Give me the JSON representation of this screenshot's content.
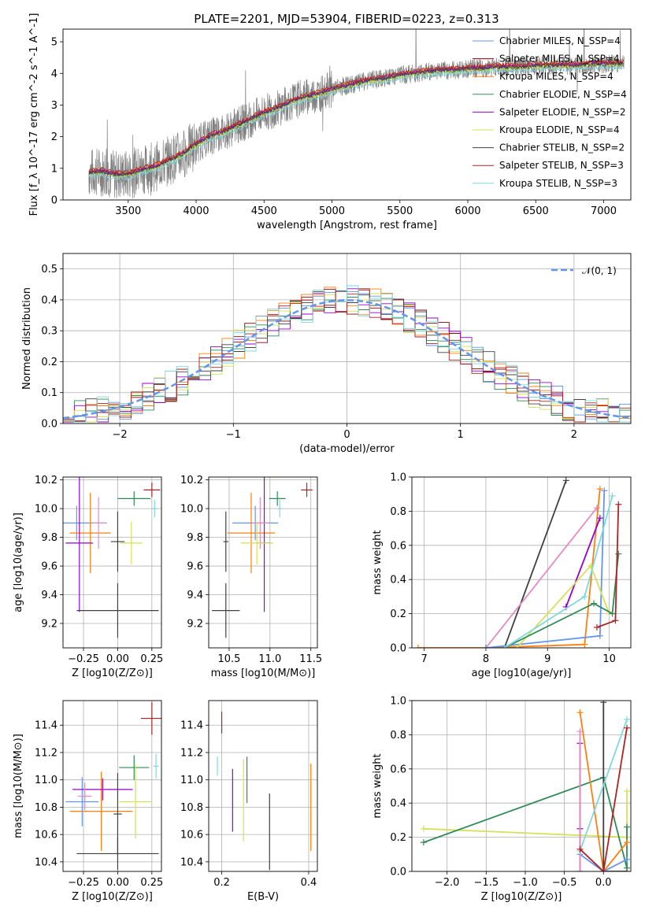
{
  "chart_data": [
    {
      "type": "line",
      "title": "PLATE=2201, MJD=53904, FIBERID=0223, z=0.313",
      "xlabel": "wavelength [Angstrom, rest frame]",
      "ylabel": "Flux [f_λ 10^-17 erg cm^-2 s^-1 A^-1]",
      "xlim": [
        3020,
        7200
      ],
      "ylim": [
        0,
        5.4
      ],
      "xticks": [
        "3500",
        "4000",
        "4500",
        "5000",
        "5500",
        "6000",
        "6500",
        "7000"
      ],
      "yticks": [
        "0",
        "1",
        "2",
        "3",
        "4",
        "5"
      ],
      "grid": false,
      "legend_position": "right",
      "data_color": "#808080",
      "model_x": [
        3210,
        3300,
        3400,
        3500,
        3600,
        3700,
        3800,
        3900,
        4000,
        4100,
        4200,
        4300,
        4400,
        4500,
        4600,
        4700,
        4800,
        4900,
        5000,
        5100,
        5200,
        5300,
        5400,
        5500,
        5600,
        5700,
        5800,
        5900,
        6000,
        6100,
        6200,
        6300,
        6400,
        6500,
        6600,
        6700,
        6800,
        6900,
        7000
      ],
      "model_y": [
        0.85,
        0.9,
        0.8,
        0.8,
        0.95,
        1.05,
        1.25,
        1.45,
        1.75,
        2.0,
        2.15,
        2.35,
        2.55,
        2.75,
        2.9,
        3.1,
        3.25,
        3.35,
        3.5,
        3.6,
        3.7,
        3.8,
        3.85,
        3.95,
        4.0,
        4.05,
        4.1,
        4.1,
        4.15,
        4.15,
        4.2,
        4.2,
        4.2,
        4.25,
        4.25,
        4.25,
        4.25,
        4.3,
        4.3
      ],
      "series": [
        {
          "name": "Chabrier MILES, N_SSP=4",
          "color": "#6495ed",
          "offset": 0.02
        },
        {
          "name": "Salpeter MILES, N_SSP=4",
          "color": "#8b0000",
          "offset": 0.0
        },
        {
          "name": "Kroupa MILES, N_SSP=4",
          "color": "#ff7f0e",
          "offset": 0.05
        },
        {
          "name": "Chabrier ELODIE, N_SSP=4",
          "color": "#2e8b57",
          "offset": -0.02
        },
        {
          "name": "Salpeter ELODIE, N_SSP=2",
          "color": "#9400d3",
          "offset": 0.03
        },
        {
          "name": "Kroupa ELODIE, N_SSP=4",
          "color": "#d4e157",
          "offset": -0.05
        },
        {
          "name": "Chabrier STELIB, N_SSP=2",
          "color": "#404040",
          "offset": 0.01
        },
        {
          "name": "Salpeter STELIB, N_SSP=3",
          "color": "#b22222",
          "offset": 0.08
        },
        {
          "name": "Kroupa STELIB, N_SSP=3",
          "color": "#7fd8e0",
          "offset": -0.12
        }
      ]
    },
    {
      "type": "line",
      "xlabel": "(data-model)/error",
      "ylabel": "Normed distribution",
      "xlim": [
        -2.5,
        2.5
      ],
      "ylim": [
        0,
        0.55
      ],
      "xticks": [
        "−2",
        "−1",
        "0",
        "1",
        "2"
      ],
      "yticks": [
        "0.0",
        "0.1",
        "0.2",
        "0.3",
        "0.4",
        "0.5"
      ],
      "grid": true,
      "legend_position": "top-right",
      "reference_curve": {
        "name": "𝒩(0, 1)",
        "color": "#6495ed",
        "style": "dashed"
      },
      "bin_width": 0.1
    },
    {
      "type": "scatter",
      "xlabel": "Z [log10(Z/Z⊙)]",
      "ylabel": "age [log10(age/yr)]",
      "xlim": [
        -0.4,
        0.32
      ],
      "ylim": [
        9.03,
        10.22
      ],
      "xticks": [
        "−0.25",
        "0.00",
        "0.25"
      ],
      "yticks": [
        "9.2",
        "9.4",
        "9.6",
        "9.8",
        "10.0",
        "10.2"
      ],
      "points": [
        {
          "color": "#6495ed",
          "x": -0.3,
          "xerr": 0.22,
          "y": 9.9,
          "yerr": 0.12
        },
        {
          "color": "#ff7f0e",
          "x": -0.2,
          "xerr": 0.15,
          "y": 9.83,
          "yerr": 0.28
        },
        {
          "color": "#9400d3",
          "x": -0.28,
          "xerr": 0.1,
          "y": 9.76,
          "yerr": 0.48
        },
        {
          "color": "#e78ac3",
          "x": -0.14,
          "xerr": 0.05,
          "y": 9.9,
          "yerr": 0.18
        },
        {
          "color": "#2e8b57",
          "x": 0.12,
          "xerr": 0.12,
          "y": 10.07,
          "yerr": 0.05
        },
        {
          "color": "#d4e157",
          "x": 0.1,
          "xerr": 0.08,
          "y": 9.76,
          "yerr": 0.15
        },
        {
          "color": "#404040",
          "x": 0.0,
          "xerr": 0.3,
          "y": 9.29,
          "yerr": 0.19
        },
        {
          "color": "#404040",
          "x": 0.0,
          "xerr": 0.05,
          "y": 9.77,
          "yerr": 0.21
        },
        {
          "color": "#b22222",
          "x": 0.25,
          "xerr": 0.06,
          "y": 10.13,
          "yerr": 0.05
        },
        {
          "color": "#7fd8e0",
          "x": 0.27,
          "xerr": 0.02,
          "y": 10.0,
          "yerr": 0.06
        }
      ]
    },
    {
      "type": "scatter",
      "xlabel": "mass [log10(M/M⊙)]",
      "ylabel": "",
      "xlim": [
        10.25,
        11.58
      ],
      "ylim": [
        9.03,
        10.22
      ],
      "xticks": [
        "10.5",
        "11.0",
        "11.5"
      ],
      "yticks": [
        "9.2",
        "9.4",
        "9.6",
        "9.8",
        "10.0",
        "10.2"
      ],
      "points": [
        {
          "color": "#6495ed",
          "x": 10.82,
          "xerr": 0.28,
          "y": 9.9,
          "yerr": 0.12
        },
        {
          "color": "#ff7f0e",
          "x": 10.77,
          "xerr": 0.29,
          "y": 9.83,
          "yerr": 0.28
        },
        {
          "color": "#9400d3",
          "x": 10.93,
          "xerr": 0.08,
          "y": 9.76,
          "yerr": 0.48
        },
        {
          "color": "#e78ac3",
          "x": 10.88,
          "xerr": 0.1,
          "y": 9.9,
          "yerr": 0.18
        },
        {
          "color": "#2e8b57",
          "x": 11.09,
          "xerr": 0.1,
          "y": 10.07,
          "yerr": 0.05
        },
        {
          "color": "#d4e157",
          "x": 10.84,
          "xerr": 0.2,
          "y": 9.76,
          "yerr": 0.15
        },
        {
          "color": "#404040",
          "x": 10.46,
          "xerr": 0.17,
          "y": 9.29,
          "yerr": 0.19
        },
        {
          "color": "#404040",
          "x": 10.46,
          "xerr": 0.03,
          "y": 9.77,
          "yerr": 0.21
        },
        {
          "color": "#b22222",
          "x": 11.45,
          "xerr": 0.07,
          "y": 10.13,
          "yerr": 0.05
        },
        {
          "color": "#7fd8e0",
          "x": 11.12,
          "xerr": 0.03,
          "y": 10.0,
          "yerr": 0.06
        }
      ]
    },
    {
      "type": "line",
      "xlabel": "age [log10(age/yr)]",
      "ylabel": "mass weight",
      "xlim": [
        6.8,
        10.35
      ],
      "ylim": [
        0,
        1.0
      ],
      "xticks": [
        "7",
        "8",
        "9",
        "10"
      ],
      "yticks": [
        "0.0",
        "0.2",
        "0.4",
        "0.6",
        "0.8",
        "1.0"
      ],
      "grid": true,
      "series": [
        {
          "color": "#404040",
          "points": [
            [
              8.0,
              0.0
            ],
            [
              8.3,
              0.0
            ],
            [
              9.3,
              0.98
            ]
          ]
        },
        {
          "color": "#e78ac3",
          "points": [
            [
              8.0,
              0.0
            ],
            [
              9.8,
              0.82
            ]
          ]
        },
        {
          "color": "#ff7f0e",
          "points": [
            [
              6.9,
              0.0
            ],
            [
              8.0,
              0.0
            ],
            [
              9.6,
              0.02
            ],
            [
              9.85,
              0.93
            ]
          ]
        },
        {
          "color": "#6495ed",
          "points": [
            [
              8.0,
              0.0
            ],
            [
              9.85,
              0.07
            ],
            [
              9.92,
              0.92
            ]
          ]
        },
        {
          "color": "#9400d3",
          "points": [
            [
              9.3,
              0.24
            ],
            [
              9.85,
              0.76
            ]
          ]
        },
        {
          "color": "#d4e157",
          "points": [
            [
              8.5,
              0.0
            ],
            [
              9.7,
              0.48
            ],
            [
              10.0,
              0.2
            ]
          ]
        },
        {
          "color": "#2e8b57",
          "points": [
            [
              8.3,
              0.0
            ],
            [
              9.75,
              0.26
            ],
            [
              10.05,
              0.2
            ],
            [
              10.15,
              0.55
            ]
          ]
        },
        {
          "color": "#7fd8e0",
          "points": [
            [
              8.3,
              0.0
            ],
            [
              9.6,
              0.3
            ],
            [
              10.05,
              0.89
            ]
          ]
        },
        {
          "color": "#b22222",
          "points": [
            [
              9.8,
              0.12
            ],
            [
              10.1,
              0.16
            ],
            [
              10.15,
              0.84
            ]
          ]
        }
      ]
    },
    {
      "type": "scatter",
      "xlabel": "Z [log10(Z/Z⊙)]",
      "ylabel": "mass [log10(M/M⊙)]",
      "xlim": [
        -0.4,
        0.32
      ],
      "ylim": [
        10.33,
        11.58
      ],
      "xticks": [
        "−0.25",
        "0.00",
        "0.25"
      ],
      "yticks": [
        "10.4",
        "10.6",
        "10.8",
        "11.0",
        "11.2",
        "11.4"
      ],
      "points": [
        {
          "color": "#6495ed",
          "x": -0.26,
          "xerr": 0.12,
          "y": 10.84,
          "yerr": 0.18
        },
        {
          "color": "#ff7f0e",
          "x": -0.12,
          "xerr": 0.23,
          "y": 10.77,
          "yerr": 0.29
        },
        {
          "color": "#9400d3",
          "x": -0.11,
          "xerr": 0.22,
          "y": 10.93,
          "yerr": 0.08
        },
        {
          "color": "#e78ac3",
          "x": -0.24,
          "xerr": 0.05,
          "y": 10.88,
          "yerr": 0.1
        },
        {
          "color": "#2e8b57",
          "x": 0.12,
          "xerr": 0.11,
          "y": 11.09,
          "yerr": 0.09
        },
        {
          "color": "#d4e157",
          "x": 0.13,
          "xerr": 0.12,
          "y": 10.84,
          "yerr": 0.27
        },
        {
          "color": "#404040",
          "x": 0.0,
          "xerr": 0.3,
          "y": 10.46,
          "yerr": 0.12
        },
        {
          "color": "#404040",
          "x": 0.0,
          "xerr": 0.03,
          "y": 10.75,
          "yerr": 0.3
        },
        {
          "color": "#b22222",
          "x": 0.25,
          "xerr": 0.08,
          "y": 11.45,
          "yerr": 0.12
        },
        {
          "color": "#7fd8e0",
          "x": 0.28,
          "xerr": 0.02,
          "y": 11.1,
          "yerr": 0.09
        }
      ]
    },
    {
      "type": "scatter",
      "xlabel": "E(B-V)",
      "ylabel": "",
      "xlim": [
        0.17,
        0.42
      ],
      "ylim": [
        10.33,
        11.58
      ],
      "xticks": [
        "0.2",
        "0.4"
      ],
      "yticks": [
        "10.4",
        "10.6",
        "10.8",
        "11.0",
        "11.2",
        "11.4"
      ],
      "points": [
        {
          "color": "#b22222",
          "x": 0.2,
          "xerr": 0,
          "y": 11.42,
          "yerr": 0.08
        },
        {
          "color": "#7fd8e0",
          "x": 0.19,
          "xerr": 0,
          "y": 11.1,
          "yerr": 0.07
        },
        {
          "color": "#9400d3",
          "x": 0.225,
          "xerr": 0,
          "y": 10.85,
          "yerr": 0.23
        },
        {
          "color": "#d4e157",
          "x": 0.25,
          "xerr": 0,
          "y": 10.85,
          "yerr": 0.3
        },
        {
          "color": "#2e8b57",
          "x": 0.258,
          "xerr": 0,
          "y": 11.0,
          "yerr": 0.17
        },
        {
          "color": "#404040",
          "x": 0.31,
          "xerr": 0,
          "y": 10.62,
          "yerr": 0.28
        },
        {
          "color": "#ff7f0e",
          "x": 0.405,
          "xerr": 0,
          "y": 10.8,
          "yerr": 0.32
        }
      ]
    },
    {
      "type": "line",
      "xlabel": "Z [log10(Z/Z⊙)]",
      "ylabel": "mass weight",
      "xlim": [
        -2.45,
        0.35
      ],
      "ylim": [
        0,
        1.0
      ],
      "xticks": [
        "−2.0",
        "−1.5",
        "−1.0",
        "−0.5",
        "0.0"
      ],
      "yticks": [
        "0.0",
        "0.2",
        "0.4",
        "0.6",
        "0.8",
        "1.0"
      ],
      "grid": true,
      "series": [
        {
          "color": "#d4e157",
          "points": [
            [
              -2.3,
              0.25
            ],
            [
              0.3,
              0.2
            ],
            [
              0.3,
              0.47
            ]
          ]
        },
        {
          "color": "#2e8b57",
          "points": [
            [
              -2.3,
              0.17
            ],
            [
              0.0,
              0.55
            ],
            [
              0.3,
              0.02
            ],
            [
              0.3,
              0.26
            ]
          ]
        },
        {
          "color": "#ff7f0e",
          "points": [
            [
              -0.3,
              0.93
            ],
            [
              0.0,
              0.0
            ],
            [
              0.3,
              0.17
            ]
          ]
        },
        {
          "color": "#404040",
          "points": [
            [
              0.0,
              0.99
            ],
            [
              0.0,
              0.0
            ],
            [
              0.3,
              0.0
            ]
          ]
        },
        {
          "color": "#9400d3",
          "points": [
            [
              -0.3,
              0.75
            ],
            [
              -0.3,
              0.25
            ],
            [
              -0.3,
              0.0
            ]
          ]
        },
        {
          "color": "#6495ed",
          "points": [
            [
              -0.3,
              0.1
            ],
            [
              0.0,
              0.0
            ],
            [
              0.3,
              0.07
            ]
          ]
        },
        {
          "color": "#e78ac3",
          "points": [
            [
              -0.3,
              0.82
            ],
            [
              -0.3,
              0.0
            ]
          ]
        },
        {
          "color": "#7fd8e0",
          "points": [
            [
              -0.3,
              0.12
            ],
            [
              0.3,
              0.89
            ]
          ]
        },
        {
          "color": "#b22222",
          "points": [
            [
              -0.3,
              0.13
            ],
            [
              0.0,
              0.0
            ],
            [
              0.3,
              0.84
            ]
          ]
        }
      ]
    }
  ]
}
